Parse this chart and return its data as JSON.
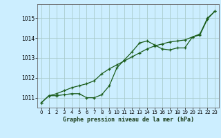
{
  "title": "Graphe pression niveau de la mer (hPa)",
  "background_color": "#cceeff",
  "grid_color": "#aacccc",
  "line_color": "#1a5c1a",
  "xlim": [
    -0.5,
    23.5
  ],
  "ylim": [
    1010.5,
    1015.7
  ],
  "yticks": [
    1011,
    1012,
    1013,
    1014,
    1015
  ],
  "xticks": [
    0,
    1,
    2,
    3,
    4,
    5,
    6,
    7,
    8,
    9,
    10,
    11,
    12,
    13,
    14,
    15,
    16,
    17,
    18,
    19,
    20,
    21,
    22,
    23
  ],
  "series1_x": [
    0,
    1,
    2,
    3,
    4,
    5,
    6,
    7,
    8,
    9,
    10,
    11,
    12,
    13,
    14,
    15,
    16,
    17,
    18,
    19,
    20,
    21,
    22,
    23
  ],
  "series1_y": [
    1010.75,
    1011.1,
    1011.1,
    1011.15,
    1011.2,
    1011.2,
    1011.0,
    1011.0,
    1011.15,
    1011.6,
    1012.5,
    1012.9,
    1013.3,
    1013.75,
    1013.85,
    1013.65,
    1013.45,
    1013.4,
    1013.5,
    1013.5,
    1014.05,
    1014.2,
    1015.0,
    1015.35
  ],
  "series2_x": [
    0,
    1,
    2,
    3,
    4,
    5,
    6,
    7,
    8,
    9,
    10,
    11,
    12,
    13,
    14,
    15,
    16,
    17,
    18,
    19,
    20,
    21,
    22,
    23
  ],
  "series2_y": [
    1010.75,
    1011.1,
    1011.2,
    1011.35,
    1011.5,
    1011.6,
    1011.7,
    1011.85,
    1012.2,
    1012.45,
    1012.65,
    1012.85,
    1013.05,
    1013.25,
    1013.45,
    1013.6,
    1013.7,
    1013.8,
    1013.85,
    1013.9,
    1014.05,
    1014.15,
    1014.95,
    1015.35
  ]
}
